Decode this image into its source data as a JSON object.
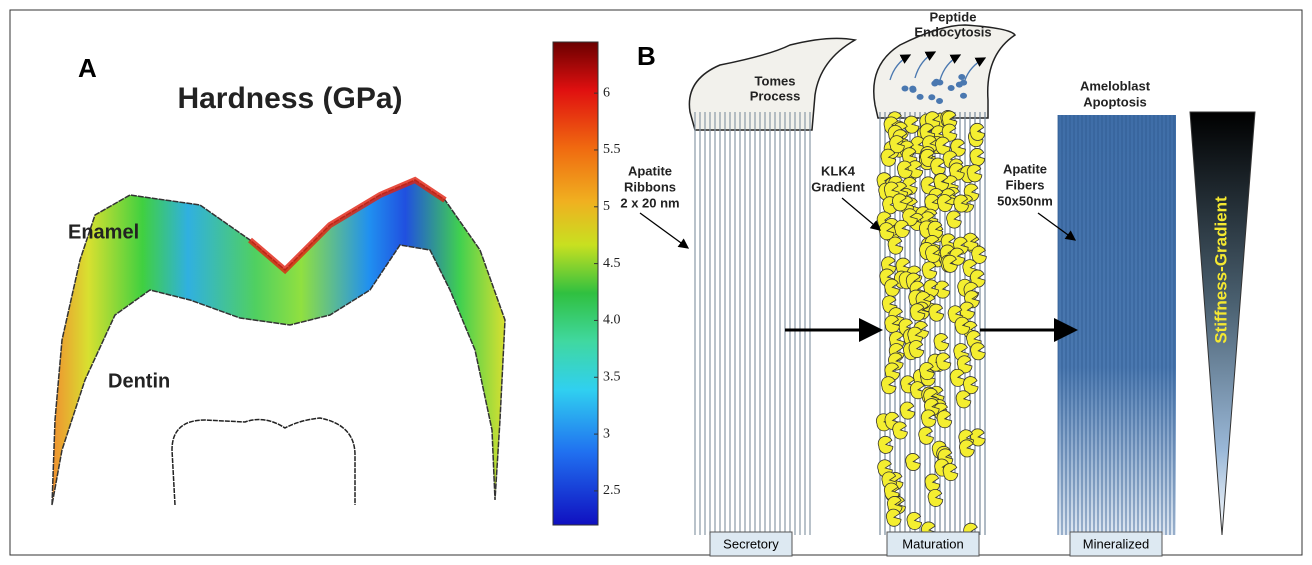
{
  "panel_a": {
    "label": "A",
    "title": "Hardness (GPa)",
    "enamel": "Enamel",
    "dentin": "Dentin",
    "colorbar": {
      "range": [
        2.2,
        6.45
      ],
      "ticks": [
        6,
        5.5,
        5,
        4.5,
        {
          "value": 4,
          "label": "4.0"
        },
        3.5,
        3,
        2.5
      ]
    }
  },
  "panel_b": {
    "label": "B",
    "tomes_process": [
      "Tomes",
      "Process"
    ],
    "peptide_endocytosis": [
      "Peptide",
      "Endocytosis"
    ],
    "apatite_ribbons": [
      "Apatite",
      "Ribbons",
      "2 x 20 nm"
    ],
    "klk4_gradient": [
      "KLK4",
      "Gradient"
    ],
    "apatite_fibers": [
      "Apatite",
      "Fibers",
      "50x50nm"
    ],
    "ameloblast_apoptosis": [
      "Ameloblast",
      "Apoptosis"
    ],
    "stiffness_gradient": "Stiffness-Gradient",
    "stages": [
      "Secretory",
      "Maturation",
      "Mineralized"
    ]
  }
}
